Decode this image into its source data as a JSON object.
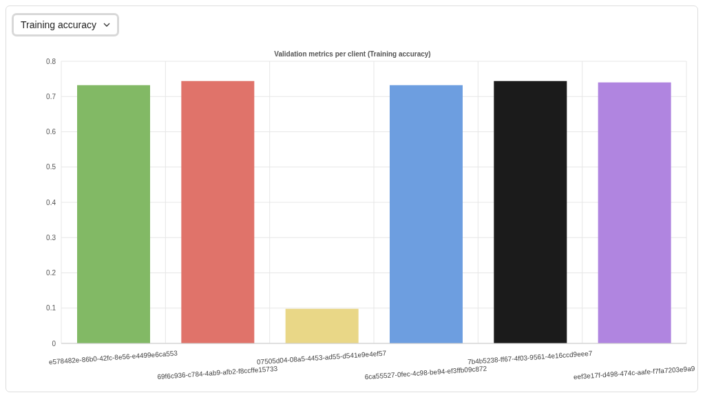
{
  "chart_data": {
    "type": "bar",
    "title": "Validation metrics per client (Training accuracy)",
    "annotations": [
      "Training accuracy"
    ],
    "categories": [
      "e578482e-86b0-42fc-8e56-e4499e6ca553",
      "69f6c936-c784-4ab9-afb2-f8ccffe15733",
      "07505d04-08a5-4453-ad55-d541e9e4ef57",
      "6ca55527-0fec-4c98-be94-ef3ffb09c872",
      "7b4b5238-ff67-4f03-9561-4e16ccd9eee7",
      "eef3e17f-d498-474c-aafe-f7fa7203e9a9"
    ],
    "values": [
      0.732,
      0.744,
      0.098,
      0.732,
      0.744,
      0.74
    ],
    "colors": [
      "#82b965",
      "#e0736a",
      "#e9d787",
      "#6d9ee0",
      "#1b1b1b",
      "#b085e0"
    ],
    "ylim": [
      0,
      0.8
    ],
    "yticks": [
      0,
      0.1,
      0.2,
      0.3,
      0.4,
      0.5,
      0.6,
      0.7,
      0.8
    ],
    "grid": true
  }
}
